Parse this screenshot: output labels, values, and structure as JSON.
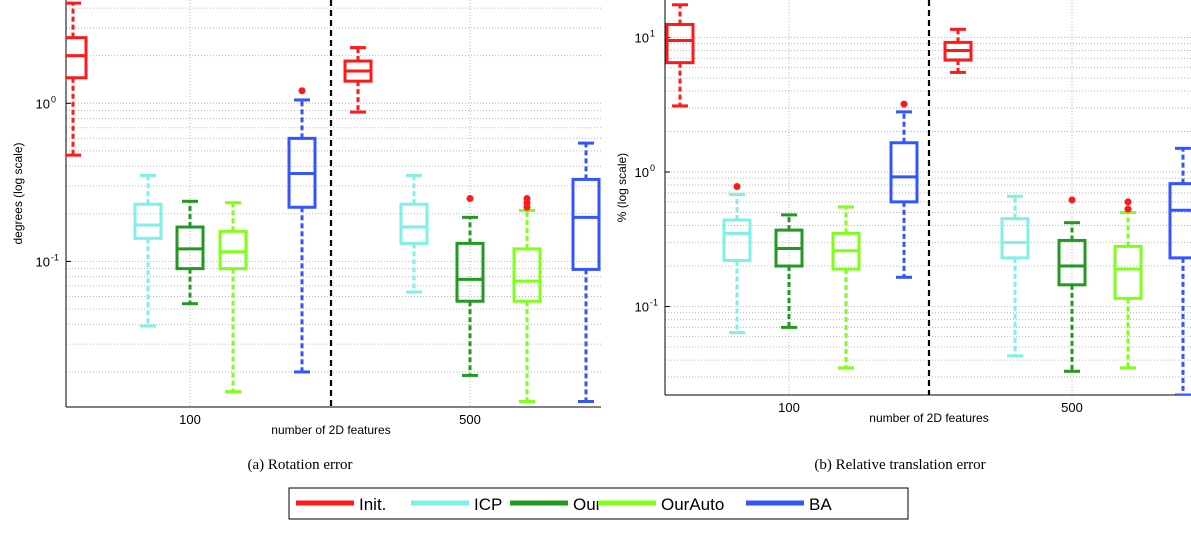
{
  "series_colors": {
    "Init.": "#ff1a1a",
    "ICP": "#7ff0e6",
    "Our": "#229922",
    "OurAuto": "#7fff1a",
    "BA": "#3355ff"
  },
  "outlier_color": "#ff1a1a",
  "legend": [
    "Init.",
    "ICP",
    "Our",
    "OurAuto",
    "BA"
  ],
  "chart_data": [
    {
      "type": "box",
      "caption": "(a)  Rotation error",
      "ylabel": "degrees (log scale)",
      "xlabel": "number of 2D features",
      "yscale": "log",
      "ylim": [
        0.012,
        4.5
      ],
      "yticks": [
        {
          "v": 0.1,
          "label": "10",
          "exp": "-1"
        },
        {
          "v": 1,
          "label": "10",
          "exp": "0"
        }
      ],
      "groups": [
        "100",
        "500"
      ],
      "grid": true,
      "boxes": [
        {
          "series": "Init.",
          "group": "100",
          "whislo": 0.47,
          "q1": 1.45,
          "med": 2.0,
          "q3": 2.6,
          "whishi": 4.3,
          "fliers": []
        },
        {
          "series": "ICP",
          "group": "100",
          "whislo": 0.039,
          "q1": 0.14,
          "med": 0.17,
          "q3": 0.23,
          "whishi": 0.35,
          "fliers": []
        },
        {
          "series": "Our",
          "group": "100",
          "whislo": 0.054,
          "q1": 0.09,
          "med": 0.12,
          "q3": 0.165,
          "whishi": 0.24,
          "fliers": []
        },
        {
          "series": "OurAuto",
          "group": "100",
          "whislo": 0.015,
          "q1": 0.09,
          "med": 0.115,
          "q3": 0.155,
          "whishi": 0.235,
          "fliers": []
        },
        {
          "series": "BA",
          "group": "100",
          "whislo": 0.02,
          "q1": 0.22,
          "med": 0.36,
          "q3": 0.6,
          "whishi": 1.05,
          "fliers": [
            1.2
          ]
        },
        {
          "series": "Init.",
          "group": "500",
          "whislo": 0.88,
          "q1": 1.38,
          "med": 1.6,
          "q3": 1.85,
          "whishi": 2.25,
          "fliers": []
        },
        {
          "series": "ICP",
          "group": "500",
          "whislo": 0.064,
          "q1": 0.13,
          "med": 0.165,
          "q3": 0.23,
          "whishi": 0.35,
          "fliers": []
        },
        {
          "series": "Our",
          "group": "500",
          "whislo": 0.019,
          "q1": 0.056,
          "med": 0.077,
          "q3": 0.13,
          "whishi": 0.19,
          "fliers": [
            0.25
          ]
        },
        {
          "series": "OurAuto",
          "group": "500",
          "whislo": 0.013,
          "q1": 0.056,
          "med": 0.075,
          "q3": 0.12,
          "whishi": 0.21,
          "fliers": [
            0.22,
            0.235,
            0.25
          ]
        },
        {
          "series": "BA",
          "group": "500",
          "whislo": 0.013,
          "q1": 0.089,
          "med": 0.19,
          "q3": 0.33,
          "whishi": 0.56,
          "fliers": []
        }
      ]
    },
    {
      "type": "box",
      "caption": "(b)  Relative translation error",
      "ylabel": "% (log scale)",
      "xlabel": "number of 2D features",
      "yscale": "log",
      "ylim": [
        0.022,
        19
      ],
      "yticks": [
        {
          "v": 0.1,
          "label": "10",
          "exp": "-1"
        },
        {
          "v": 1,
          "label": "10",
          "exp": "0"
        },
        {
          "v": 10,
          "label": "10",
          "exp": "1"
        }
      ],
      "groups": [
        "100",
        "500"
      ],
      "grid": true,
      "boxes": [
        {
          "series": "Init.",
          "group": "100",
          "whislo": 3.1,
          "q1": 6.5,
          "med": 9.5,
          "q3": 12.5,
          "whishi": 17.5,
          "fliers": []
        },
        {
          "series": "ICP",
          "group": "100",
          "whislo": 0.064,
          "q1": 0.22,
          "med": 0.35,
          "q3": 0.44,
          "whishi": 0.68,
          "fliers": [
            0.78
          ]
        },
        {
          "series": "Our",
          "group": "100",
          "whislo": 0.07,
          "q1": 0.2,
          "med": 0.27,
          "q3": 0.37,
          "whishi": 0.48,
          "fliers": []
        },
        {
          "series": "OurAuto",
          "group": "100",
          "whislo": 0.035,
          "q1": 0.19,
          "med": 0.26,
          "q3": 0.35,
          "whishi": 0.55,
          "fliers": []
        },
        {
          "series": "BA",
          "group": "100",
          "whislo": 0.165,
          "q1": 0.6,
          "med": 0.92,
          "q3": 1.65,
          "whishi": 2.8,
          "fliers": [
            3.2
          ]
        },
        {
          "series": "Init.",
          "group": "500",
          "whislo": 5.5,
          "q1": 6.8,
          "med": 8.0,
          "q3": 9.2,
          "whishi": 11.5,
          "fliers": []
        },
        {
          "series": "ICP",
          "group": "500",
          "whislo": 0.043,
          "q1": 0.23,
          "med": 0.3,
          "q3": 0.45,
          "whishi": 0.66,
          "fliers": []
        },
        {
          "series": "Our",
          "group": "500",
          "whislo": 0.033,
          "q1": 0.145,
          "med": 0.2,
          "q3": 0.31,
          "whishi": 0.42,
          "fliers": [
            0.62
          ]
        },
        {
          "series": "OurAuto",
          "group": "500",
          "whislo": 0.035,
          "q1": 0.115,
          "med": 0.19,
          "q3": 0.28,
          "whishi": 0.5,
          "fliers": [
            0.53,
            0.6
          ]
        },
        {
          "series": "BA",
          "group": "500",
          "whislo": 0.022,
          "q1": 0.23,
          "med": 0.52,
          "q3": 0.82,
          "whishi": 1.5,
          "fliers": []
        }
      ]
    }
  ]
}
